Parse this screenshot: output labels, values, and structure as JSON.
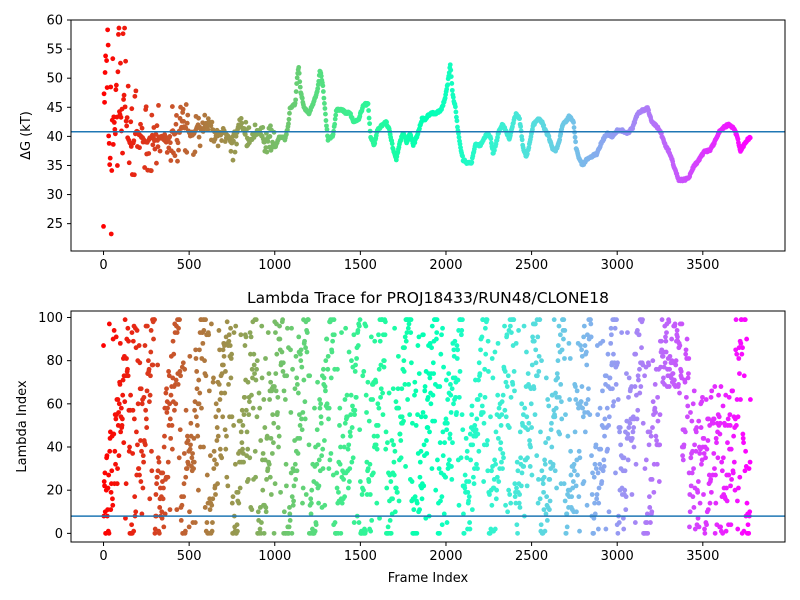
{
  "chart_data": [
    {
      "type": "scatter",
      "title": "",
      "xlabel": "",
      "ylabel": "ΔG (kT)",
      "xlim": [
        -190,
        3980
      ],
      "ylim": [
        20.3,
        60
      ],
      "x_ticks": [
        0,
        500,
        1000,
        1500,
        2000,
        2500,
        3000,
        3500
      ],
      "y_ticks": [
        25,
        30,
        35,
        40,
        45,
        50,
        55,
        60
      ],
      "hline": 40.8,
      "hline_color": "#1f77b4",
      "colormap": "rainbow",
      "grid": false,
      "frames": 3780,
      "trace": [
        [
          0,
          40
        ],
        [
          8,
          48
        ],
        [
          15,
          58
        ],
        [
          25,
          42
        ],
        [
          40,
          36
        ],
        [
          55,
          45
        ],
        [
          70,
          40
        ],
        [
          85,
          46
        ],
        [
          100,
          43
        ],
        [
          120,
          47
        ],
        [
          140,
          40
        ],
        [
          165,
          38
        ],
        [
          190,
          41
        ],
        [
          220,
          40
        ],
        [
          250,
          39
        ],
        [
          280,
          40
        ],
        [
          310,
          39
        ],
        [
          340,
          40
        ],
        [
          370,
          39
        ],
        [
          400,
          41
        ],
        [
          430,
          40
        ],
        [
          460,
          42
        ],
        [
          490,
          41
        ],
        [
          520,
          40
        ],
        [
          550,
          42
        ],
        [
          580,
          41
        ],
        [
          610,
          43
        ],
        [
          640,
          41
        ],
        [
          670,
          40
        ],
        [
          700,
          41
        ],
        [
          730,
          40
        ],
        [
          760,
          38
        ],
        [
          790,
          42
        ],
        [
          820,
          41
        ],
        [
          850,
          39
        ],
        [
          880,
          40
        ],
        [
          910,
          41
        ],
        [
          940,
          39
        ],
        [
          970,
          40
        ],
        [
          1000,
          38
        ],
        [
          1030,
          40
        ],
        [
          1060,
          39.5
        ],
        [
          1080,
          42
        ],
        [
          1090,
          45
        ],
        [
          1120,
          45.5
        ],
        [
          1130,
          50
        ],
        [
          1140,
          52
        ],
        [
          1150,
          48
        ],
        [
          1170,
          45
        ],
        [
          1200,
          44
        ],
        [
          1230,
          46
        ],
        [
          1250,
          48
        ],
        [
          1265,
          51.5
        ],
        [
          1280,
          49
        ],
        [
          1295,
          44
        ],
        [
          1310,
          39.5
        ],
        [
          1340,
          40
        ],
        [
          1360,
          44.5
        ],
        [
          1390,
          44.5
        ],
        [
          1420,
          44
        ],
        [
          1440,
          44
        ],
        [
          1460,
          42.5
        ],
        [
          1490,
          43
        ],
        [
          1520,
          45.5
        ],
        [
          1545,
          45.5
        ],
        [
          1560,
          40
        ],
        [
          1580,
          38.5
        ],
        [
          1600,
          41
        ],
        [
          1630,
          42
        ],
        [
          1650,
          42.5
        ],
        [
          1670,
          41
        ],
        [
          1690,
          38
        ],
        [
          1710,
          36
        ],
        [
          1730,
          39
        ],
        [
          1750,
          40.5
        ],
        [
          1770,
          39
        ],
        [
          1790,
          40.5
        ],
        [
          1810,
          38.5
        ],
        [
          1830,
          40
        ],
        [
          1860,
          43
        ],
        [
          1880,
          43
        ],
        [
          1910,
          44
        ],
        [
          1940,
          44
        ],
        [
          1970,
          44.5
        ],
        [
          1990,
          46
        ],
        [
          2010,
          49
        ],
        [
          2025,
          52.5
        ],
        [
          2040,
          47
        ],
        [
          2055,
          45
        ],
        [
          2070,
          41
        ],
        [
          2085,
          38
        ],
        [
          2100,
          36
        ],
        [
          2120,
          35.5
        ],
        [
          2150,
          35.5
        ],
        [
          2170,
          38.5
        ],
        [
          2200,
          38.5
        ],
        [
          2220,
          39.5
        ],
        [
          2240,
          40.5
        ],
        [
          2260,
          40
        ],
        [
          2275,
          37
        ],
        [
          2290,
          38.5
        ],
        [
          2310,
          41
        ],
        [
          2330,
          42
        ],
        [
          2350,
          41
        ],
        [
          2370,
          39.5
        ],
        [
          2390,
          42
        ],
        [
          2410,
          44
        ],
        [
          2430,
          43
        ],
        [
          2450,
          38
        ],
        [
          2470,
          36.5
        ],
        [
          2490,
          39
        ],
        [
          2510,
          42
        ],
        [
          2540,
          43
        ],
        [
          2560,
          42.5
        ],
        [
          2580,
          41
        ],
        [
          2600,
          40
        ],
        [
          2620,
          38
        ],
        [
          2640,
          37.5
        ],
        [
          2660,
          39
        ],
        [
          2680,
          42
        ],
        [
          2700,
          42.5
        ],
        [
          2720,
          43.5
        ],
        [
          2745,
          42.5
        ],
        [
          2760,
          38
        ],
        [
          2780,
          36
        ],
        [
          2800,
          35
        ],
        [
          2820,
          36
        ],
        [
          2850,
          36.5
        ],
        [
          2880,
          37
        ],
        [
          2910,
          39
        ],
        [
          2940,
          40.5
        ],
        [
          2970,
          40
        ],
        [
          3000,
          41
        ],
        [
          3030,
          41
        ],
        [
          3060,
          40.5
        ],
        [
          3090,
          41.5
        ],
        [
          3120,
          44
        ],
        [
          3150,
          44.5
        ],
        [
          3180,
          44.8
        ],
        [
          3200,
          42.5
        ],
        [
          3220,
          42
        ],
        [
          3250,
          41
        ],
        [
          3280,
          38.5
        ],
        [
          3300,
          37.5
        ],
        [
          3320,
          36
        ],
        [
          3340,
          34
        ],
        [
          3360,
          32.5
        ],
        [
          3390,
          32.5
        ],
        [
          3420,
          33
        ],
        [
          3450,
          35
        ],
        [
          3480,
          36
        ],
        [
          3510,
          37.5
        ],
        [
          3540,
          37.5
        ],
        [
          3560,
          38.5
        ],
        [
          3590,
          40.5
        ],
        [
          3620,
          41.5
        ],
        [
          3650,
          42
        ],
        [
          3680,
          41.5
        ],
        [
          3700,
          40
        ],
        [
          3720,
          37.5
        ],
        [
          3750,
          39
        ],
        [
          3780,
          40
        ]
      ]
    },
    {
      "type": "scatter",
      "title": "Lambda Trace for PROJ18433/RUN48/CLONE18",
      "xlabel": "Frame Index",
      "ylabel": "Lambda Index",
      "xlim": [
        -190,
        3980
      ],
      "ylim": [
        -4,
        103
      ],
      "x_ticks": [
        0,
        500,
        1000,
        1500,
        2000,
        2500,
        3000,
        3500
      ],
      "y_ticks": [
        0,
        20,
        40,
        60,
        80,
        100
      ],
      "hline": 8,
      "hline_color": "#1f77b4",
      "colormap": "rainbow",
      "grid": false,
      "frames": 3780,
      "points": "one lambda index (0–99) per frame, scattered over the full range"
    }
  ]
}
